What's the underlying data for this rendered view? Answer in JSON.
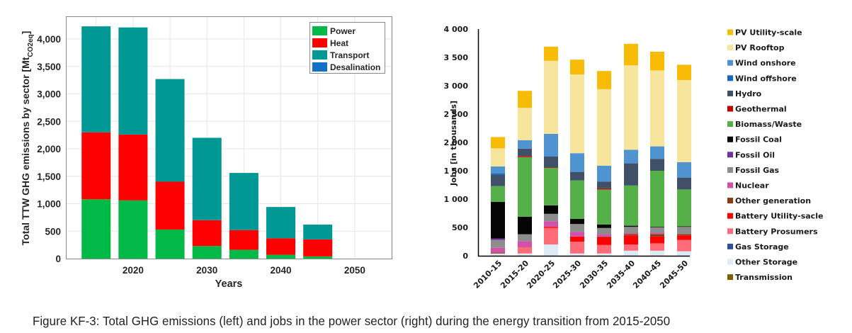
{
  "caption": "Figure KF-3: Total GHG emissions (left) and jobs in the power sector (right) during the energy transition from 2015-2050",
  "chart_data": [
    {
      "type": "bar",
      "stacked": true,
      "title": "",
      "xlabel": "Years",
      "ylabel": "Total TTW GHG emissions by sector [Mt",
      "ylabel_subscript": "CO2eq",
      "ylabel_suffix": "]",
      "x": [
        2015,
        2020,
        2025,
        2030,
        2035,
        2040,
        2045
      ],
      "xlim": [
        2011,
        2055
      ],
      "xticks": [
        2020,
        2030,
        2040,
        2050
      ],
      "xtick_labels": [
        "2020",
        "2030",
        "2040",
        "2050"
      ],
      "ylim": [
        0,
        4400
      ],
      "yticks": [
        0,
        500,
        1000,
        1500,
        2000,
        2500,
        3000,
        3500,
        4000
      ],
      "ytick_labels": [
        "0",
        "500",
        "1,000",
        "1,500",
        "2,000",
        "2,500",
        "3,000",
        "3,500",
        "4,000"
      ],
      "grid": true,
      "legend_position": "top-right",
      "series": [
        {
          "name": "Power",
          "color": "#00b946",
          "values": [
            1080,
            1060,
            530,
            230,
            160,
            70,
            40
          ]
        },
        {
          "name": "Heat",
          "color": "#ff0000",
          "values": [
            1220,
            1200,
            870,
            470,
            360,
            300,
            310
          ]
        },
        {
          "name": "Transport",
          "color": "#009894",
          "values": [
            1930,
            1950,
            1870,
            1500,
            1040,
            570,
            270
          ]
        },
        {
          "name": "Desalination",
          "color": "#1271c4",
          "values": [
            0,
            0,
            0,
            0,
            0,
            0,
            0
          ]
        }
      ]
    },
    {
      "type": "bar",
      "stacked": true,
      "title": "",
      "xlabel": "",
      "ylabel": "Jobs [in thousands]",
      "categories": [
        "2010-15",
        "2015-20",
        "2020-25",
        "2025-30",
        "2030-35",
        "2035-40",
        "2040-45",
        "2045-50"
      ],
      "ylim": [
        0,
        4000
      ],
      "yticks": [
        0,
        500,
        1000,
        1500,
        2000,
        2500,
        3000,
        3500,
        4000
      ],
      "ytick_labels": [
        "0",
        "500",
        "1 000",
        "1 500",
        "2 000",
        "2 500",
        "3 000",
        "3 500",
        "4 000"
      ],
      "grid": false,
      "legend_position": "right",
      "series": [
        {
          "name": "Other Storage",
          "color": "#ddebf7",
          "values": [
            40,
            40,
            200,
            40,
            40,
            90,
            90,
            80
          ]
        },
        {
          "name": "Transmission",
          "color": "#7f6000",
          "values": [
            0,
            0,
            0,
            0,
            0,
            0,
            0,
            0
          ]
        },
        {
          "name": "Gas Storage",
          "color": "#2f4f9f",
          "values": [
            0,
            0,
            0,
            0,
            0,
            0,
            0,
            0
          ]
        },
        {
          "name": "Battery Prosumers",
          "color": "#ff6b77",
          "values": [
            0,
            110,
            290,
            210,
            150,
            110,
            130,
            200
          ]
        },
        {
          "name": "Battery Utility-sacle",
          "color": "#ff0000",
          "values": [
            0,
            0,
            20,
            90,
            140,
            160,
            120,
            80
          ]
        },
        {
          "name": "Other generation",
          "color": "#8b3a0f",
          "values": [
            15,
            0,
            0,
            0,
            10,
            20,
            40,
            20
          ]
        },
        {
          "name": "Nuclear",
          "color": "#d44fa8",
          "values": [
            85,
            110,
            100,
            80,
            40,
            20,
            20,
            0
          ]
        },
        {
          "name": "Fossil Gas",
          "color": "#8c8c8c",
          "values": [
            140,
            120,
            130,
            140,
            110,
            110,
            100,
            130
          ]
        },
        {
          "name": "Fossil Oil",
          "color": "#7030a0",
          "values": [
            25,
            0,
            0,
            0,
            0,
            0,
            0,
            0
          ]
        },
        {
          "name": "Fossil Coal",
          "color": "#050505",
          "values": [
            645,
            310,
            150,
            90,
            60,
            20,
            10,
            10
          ]
        },
        {
          "name": "Biomass/Waste",
          "color": "#56b04a",
          "values": [
            280,
            1050,
            660,
            680,
            620,
            710,
            990,
            650
          ]
        },
        {
          "name": "Geothermal",
          "color": "#c00000",
          "values": [
            0,
            20,
            10,
            0,
            20,
            0,
            0,
            0
          ]
        },
        {
          "name": "Hydro",
          "color": "#3f5068",
          "values": [
            200,
            130,
            190,
            150,
            120,
            390,
            210,
            210
          ]
        },
        {
          "name": "Wind offshore",
          "color": "#1468bd",
          "values": [
            20,
            0,
            0,
            0,
            0,
            0,
            0,
            0
          ]
        },
        {
          "name": "Wind onshore",
          "color": "#4f93d1",
          "values": [
            125,
            150,
            400,
            330,
            280,
            240,
            220,
            270
          ]
        },
        {
          "name": "PV Rooftop",
          "color": "#f8e59d",
          "values": [
            320,
            570,
            1290,
            1390,
            1350,
            1490,
            1340,
            1450
          ]
        },
        {
          "name": "PV Utility-scale",
          "color": "#f8bb06",
          "values": [
            200,
            300,
            250,
            260,
            320,
            380,
            330,
            270
          ]
        }
      ],
      "legend_order": [
        "PV Utility-scale",
        "PV Rooftop",
        "Wind onshore",
        "Wind offshore",
        "Hydro",
        "Geothermal",
        "Biomass/Waste",
        "Fossil Coal",
        "Fossil Oil",
        "Fossil Gas",
        "Nuclear",
        "Other generation",
        "Battery Utility-sacle",
        "Battery Prosumers",
        "Gas Storage",
        "Other Storage",
        "Transmission"
      ]
    }
  ]
}
